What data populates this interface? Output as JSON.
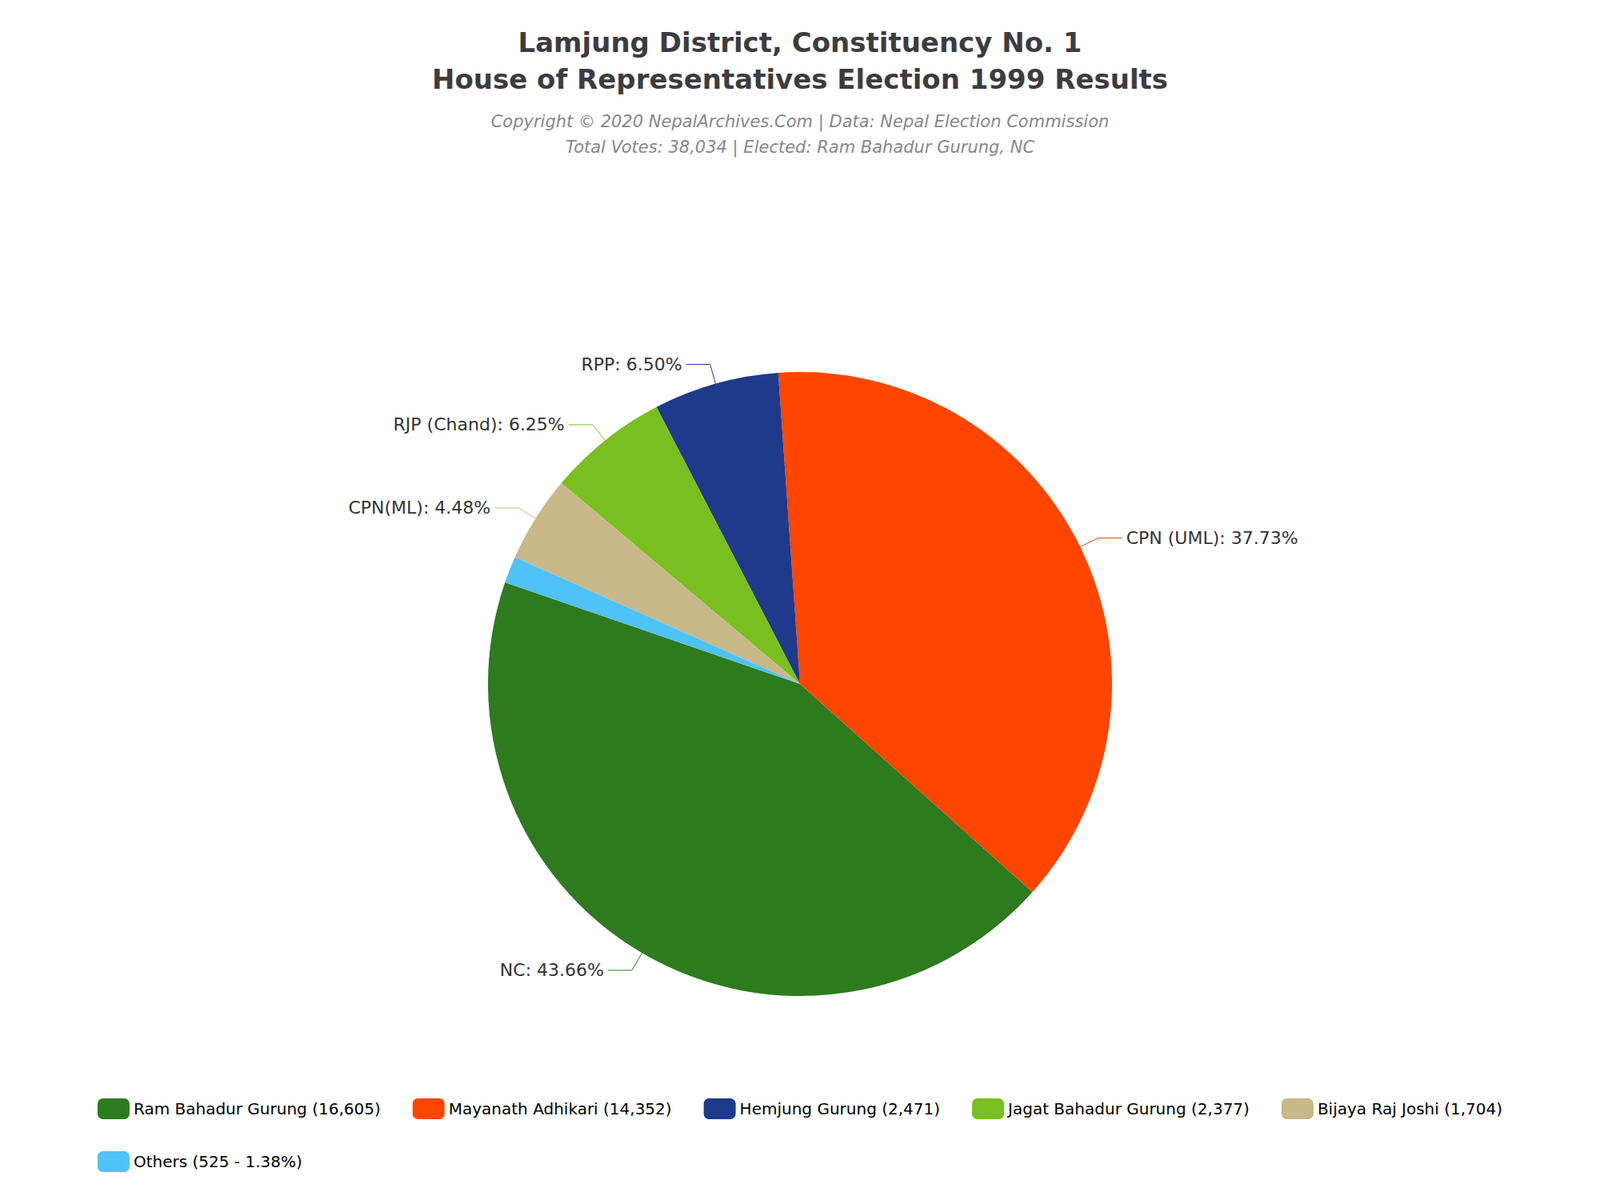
{
  "chart_data": {
    "type": "pie",
    "title": [
      "Lamjung District, Constituency No. 1",
      "House of Representatives Election 1999 Results"
    ],
    "subtitle": [
      "Copyright © 2020 NepalArchives.Com | Data: Nepal Election Commission",
      "Total Votes: 38,034 | Elected: Ram Bahadur Gurung, NC"
    ],
    "categories": [
      "Ram Bahadur Gurung (16,605)",
      "Mayanath Adhikari (14,352)",
      "Hemjung Gurung (2,471)",
      "Jagat Bahadur Gurung (2,377)",
      "Bijaya Raj Joshi (1,704)",
      "Others (525 - 1.38%)"
    ],
    "values": [
      43.66,
      37.73,
      6.5,
      6.25,
      4.48,
      1.38
    ],
    "value_labels": [
      "NC: 43.66%",
      "CPN (UML): 37.73%",
      "RPP: 6.50%",
      "RJP (Chand): 6.25%",
      "CPN(ML): 4.48%",
      null
    ],
    "colors": [
      "#2d7a1f",
      "#ff4500",
      "#1f3a8a",
      "#7abf20",
      "#c8b88a",
      "#4fc3f7"
    ],
    "data_labels": true,
    "legend": "bottom"
  }
}
